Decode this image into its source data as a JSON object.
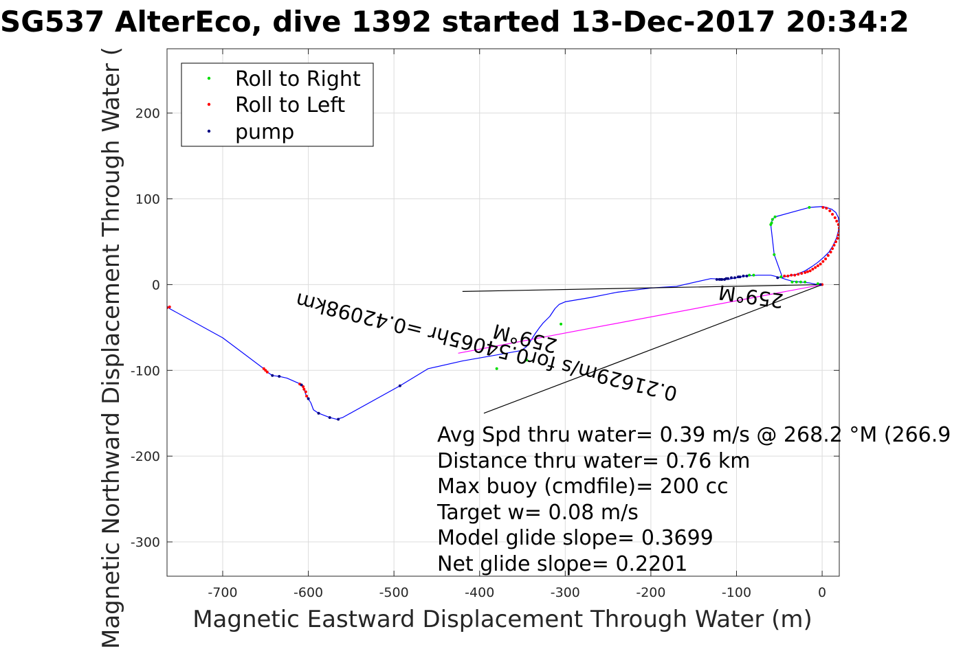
{
  "chart_data": {
    "type": "scatter",
    "title": "SG537 AlterEco, dive 1392 started 13-Dec-2017 20:34:2",
    "xlabel": "Magnetic Eastward Displacement Through Water (m)",
    "ylabel": "Magnetic Northward Displacement Through Water (",
    "xlim": [
      -765,
      20
    ],
    "ylim": [
      -340,
      275
    ],
    "xticks": [
      -700,
      -600,
      -500,
      -400,
      -300,
      -200,
      -100,
      0
    ],
    "yticks": [
      -300,
      -200,
      -100,
      0,
      100,
      200
    ],
    "grid": true,
    "legend_position": "top-left",
    "colors": {
      "track": "#0000ff",
      "roll_right": "#00dd00",
      "roll_left": "#ff0000",
      "pump": "#000080",
      "heading_line": "#000000",
      "magenta_line": "#ff00ff",
      "grid": "#dcdcdc",
      "axis": "#262626"
    },
    "legend": [
      {
        "label": "Roll to Right",
        "key": "roll_right"
      },
      {
        "label": "Roll to Left",
        "key": "roll_left"
      },
      {
        "label": "pump",
        "key": "pump"
      }
    ],
    "track": [
      [
        0,
        0
      ],
      [
        -5,
        0
      ],
      [
        -15,
        2
      ],
      [
        -25,
        3
      ],
      [
        -35,
        4
      ],
      [
        -42,
        6
      ],
      [
        -48,
        8
      ],
      [
        -60,
        11
      ],
      [
        -75,
        11
      ],
      [
        -90,
        10
      ],
      [
        -100,
        8
      ],
      [
        -110,
        6
      ],
      [
        -130,
        7
      ],
      [
        -170,
        -2
      ],
      [
        -200,
        -4
      ],
      [
        -240,
        -9
      ],
      [
        -270,
        -15
      ],
      [
        -300,
        -20
      ],
      [
        -307,
        -23
      ],
      [
        -312,
        -28
      ],
      [
        -318,
        -37
      ],
      [
        -322,
        -41
      ],
      [
        -326,
        -45
      ],
      [
        -330,
        -50
      ],
      [
        -335,
        -57
      ],
      [
        -340,
        -65
      ],
      [
        -343,
        -70
      ],
      [
        -346,
        -73
      ],
      [
        -352,
        -77
      ],
      [
        -380,
        -82
      ],
      [
        -420,
        -89
      ],
      [
        -460,
        -98
      ],
      [
        -493,
        -118
      ],
      [
        -560,
        -155
      ],
      [
        -567,
        -157
      ],
      [
        -575,
        -155
      ],
      [
        -588,
        -150
      ],
      [
        -594,
        -146
      ],
      [
        -597,
        -138
      ],
      [
        -600,
        -133
      ],
      [
        -603,
        -128
      ],
      [
        -605,
        -122
      ],
      [
        -607,
        -118
      ],
      [
        -609,
        -116
      ],
      [
        -625,
        -109
      ],
      [
        -634,
        -107
      ],
      [
        -642,
        -106
      ],
      [
        -648,
        -102
      ],
      [
        -652,
        -98
      ],
      [
        -700,
        -62
      ],
      [
        -762,
        -28
      ],
      [
        -765,
        -25
      ]
    ],
    "loop": [
      [
        -48,
        8
      ],
      [
        -40,
        10
      ],
      [
        -30,
        12
      ],
      [
        -20,
        16
      ],
      [
        -12,
        21
      ],
      [
        -5,
        26
      ],
      [
        2,
        32
      ],
      [
        8,
        38
      ],
      [
        13,
        46
      ],
      [
        17,
        55
      ],
      [
        19,
        63
      ],
      [
        20,
        70
      ],
      [
        19,
        78
      ],
      [
        16,
        84
      ],
      [
        11,
        88
      ],
      [
        5,
        90
      ],
      [
        0,
        91
      ],
      [
        -15,
        90
      ],
      [
        -55,
        79
      ],
      [
        -58,
        76
      ],
      [
        -60,
        70
      ],
      [
        -56,
        35
      ],
      [
        -47,
        10
      ]
    ],
    "roll_right": [
      [
        -15,
        90
      ],
      [
        -55,
        79
      ],
      [
        -58,
        76
      ],
      [
        -59,
        72
      ],
      [
        -60,
        70
      ],
      [
        -56,
        35
      ],
      [
        -48,
        9
      ],
      [
        -80,
        11
      ],
      [
        -85,
        11
      ],
      [
        -20,
        3
      ],
      [
        -25,
        3
      ],
      [
        -30,
        3
      ],
      [
        -35,
        3
      ],
      [
        -305,
        -46
      ],
      [
        -345,
        -88
      ],
      [
        -380,
        -98
      ],
      [
        -5,
        1
      ]
    ],
    "roll_left": [
      [
        1,
        90
      ],
      [
        5,
        89
      ],
      [
        9,
        86
      ],
      [
        12,
        82
      ],
      [
        15,
        78
      ],
      [
        17,
        74
      ],
      [
        19,
        70
      ],
      [
        20,
        66
      ],
      [
        20,
        62
      ],
      [
        19,
        58
      ],
      [
        18,
        54
      ],
      [
        16,
        50
      ],
      [
        14,
        46
      ],
      [
        12,
        42
      ],
      [
        10,
        38
      ],
      [
        7,
        34
      ],
      [
        4,
        30
      ],
      [
        1,
        27
      ],
      [
        -2,
        24
      ],
      [
        -5,
        22
      ],
      [
        -8,
        20
      ],
      [
        -11,
        18
      ],
      [
        -14,
        16
      ],
      [
        -17,
        15
      ],
      [
        -20,
        14
      ],
      [
        -24,
        13
      ],
      [
        -28,
        12
      ],
      [
        -32,
        11
      ],
      [
        -36,
        11
      ],
      [
        -40,
        10
      ],
      [
        -44,
        10
      ],
      [
        0,
        0
      ],
      [
        -652,
        -98
      ],
      [
        -650,
        -100
      ],
      [
        -648,
        -102
      ],
      [
        -610,
        -116
      ],
      [
        -606,
        -119
      ],
      [
        -605,
        -122
      ],
      [
        -603,
        -125
      ],
      [
        -602,
        -130
      ],
      [
        -762,
        -26
      ],
      [
        -765,
        -27
      ]
    ],
    "pump": [
      [
        -52,
        8
      ],
      [
        -88,
        10
      ],
      [
        -92,
        10
      ],
      [
        -96,
        9
      ],
      [
        -98,
        9
      ],
      [
        -102,
        8
      ],
      [
        -106,
        8
      ],
      [
        -110,
        7
      ],
      [
        -112,
        7
      ],
      [
        -114,
        6
      ],
      [
        -117,
        6
      ],
      [
        -120,
        6
      ],
      [
        -123,
        6
      ],
      [
        -118,
        6
      ],
      [
        -493,
        -118
      ],
      [
        -565,
        -157
      ],
      [
        -575,
        -155
      ],
      [
        -588,
        -150
      ],
      [
        -600,
        -133
      ],
      [
        -608,
        -117
      ],
      [
        -634,
        -107
      ],
      [
        -642,
        -106
      ],
      [
        -2,
        0
      ]
    ],
    "heading_lines": [
      [
        [
          0,
          0
        ],
        [
          -420,
          -8
        ]
      ],
      [
        [
          0,
          0
        ],
        [
          -395,
          -150
        ]
      ]
    ],
    "magenta_line": [
      [
        0,
        0
      ],
      [
        -425,
        -80
      ]
    ],
    "rotated_labels": [
      {
        "text": "0.21629m/s for0.54065hr =0.42098km",
        "x": -390,
        "y": -65
      },
      {
        "text": "259°M",
        "x": -345,
        "y": -55
      },
      {
        "text": "259°M",
        "x": -82,
        "y": -6
      }
    ],
    "annotation_lines": [
      "Avg Spd thru water=  0.39 m/s @ 268.2 °M (266.9",
      "Distance thru water=  0.76 km",
      "Max buoy (cmdfile)= 200 cc",
      "Target w= 0.08 m/s",
      "Model glide slope= 0.3699",
      "Net glide slope= 0.2201"
    ]
  }
}
